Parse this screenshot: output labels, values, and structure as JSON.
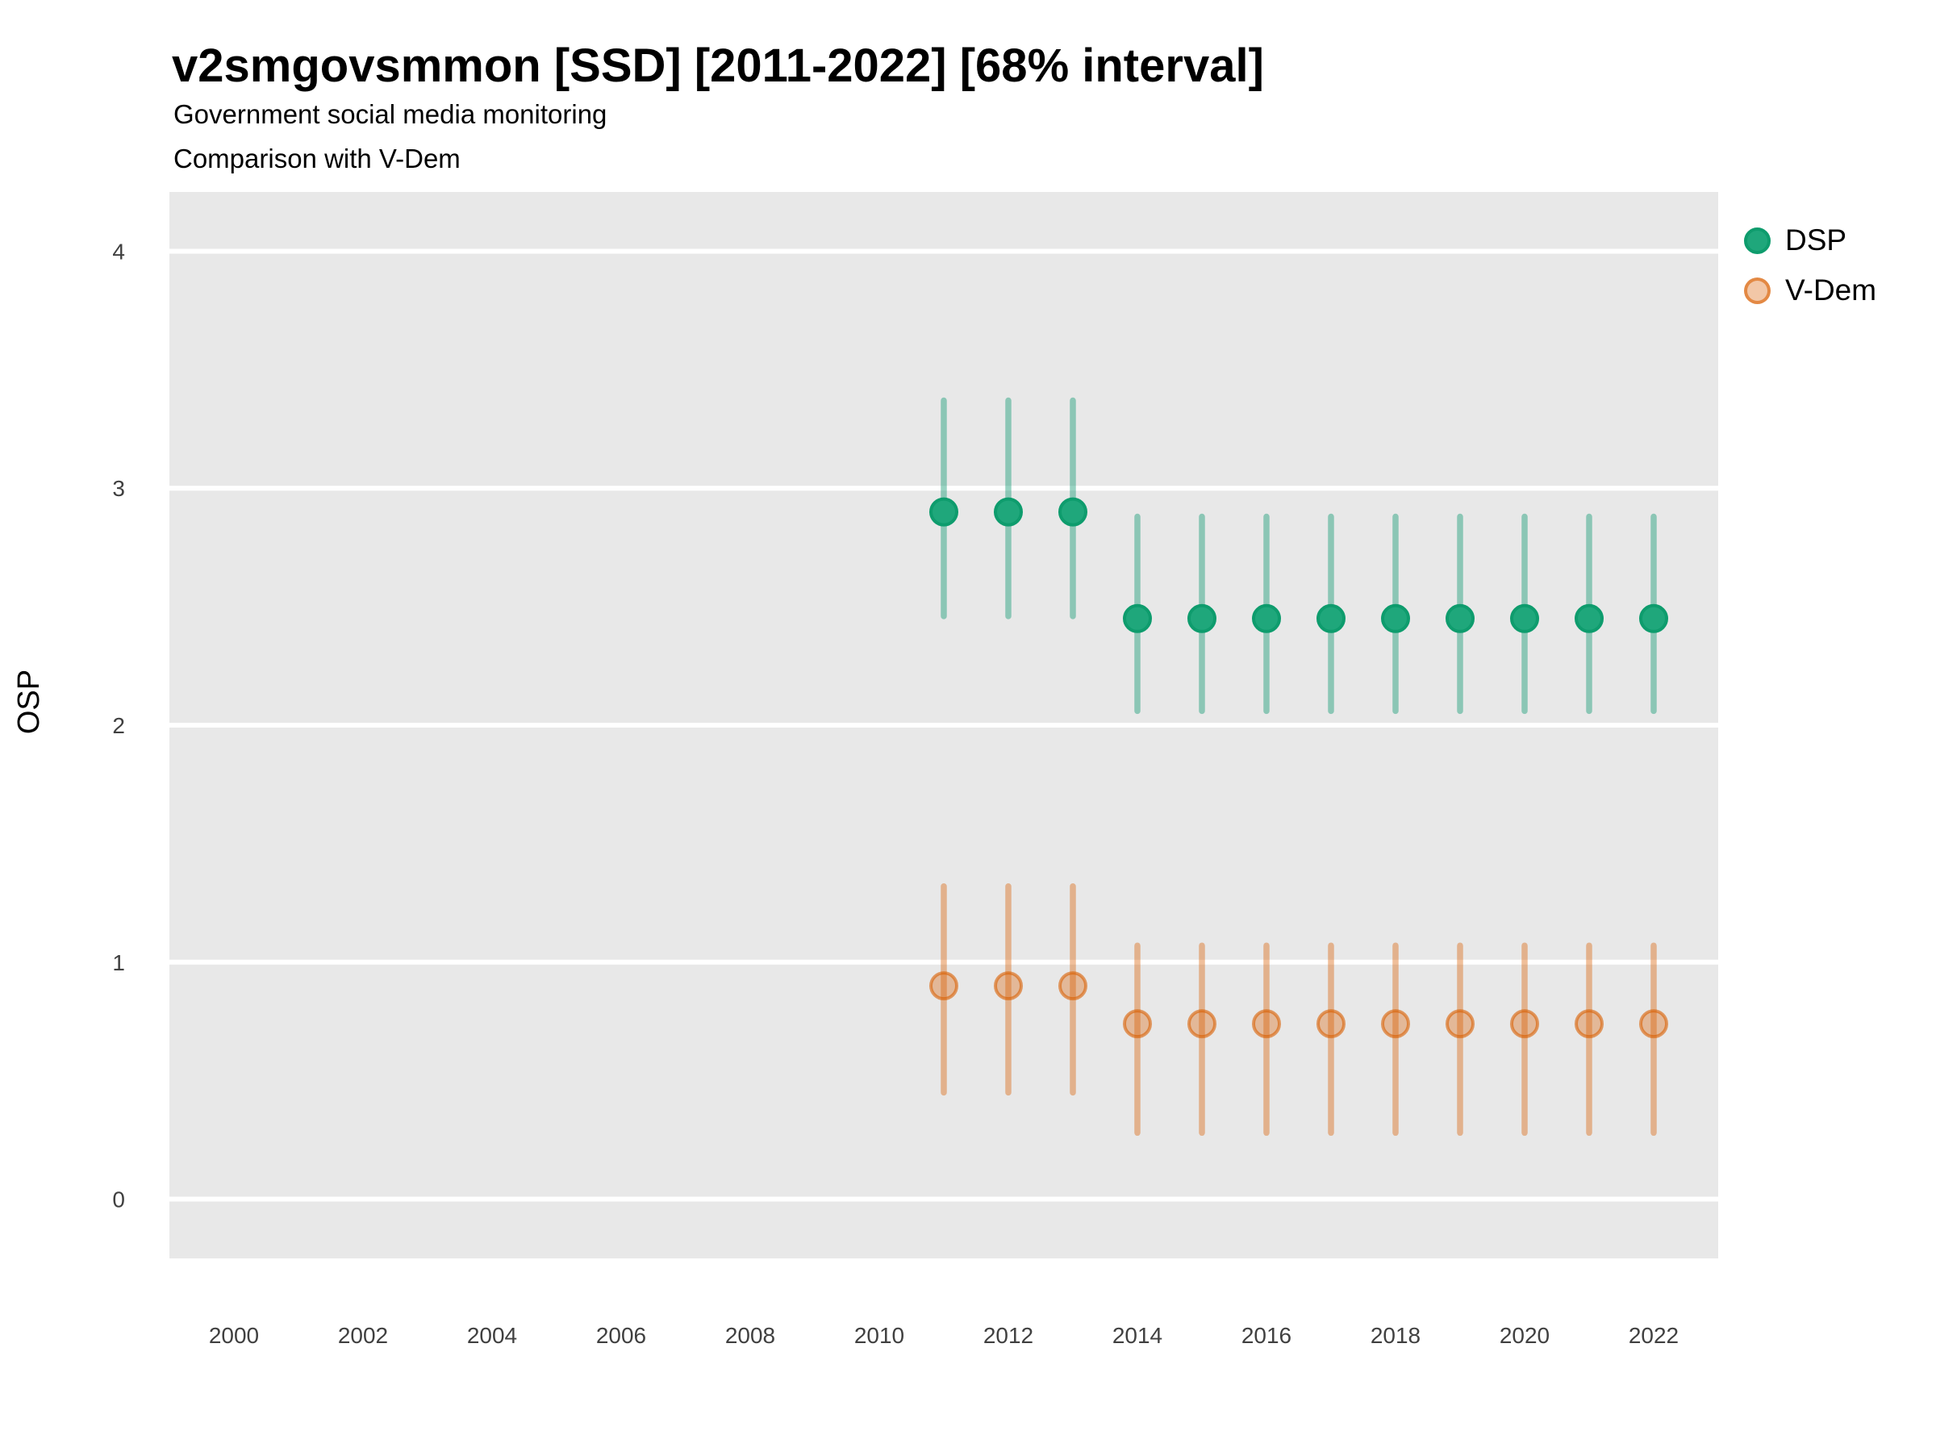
{
  "page": {
    "title": "v2smgovsmmon [SSD] [2011-2022] [68% interval]",
    "subtitle_line1": "Government social media monitoring",
    "subtitle_line2": "Comparison with V-Dem"
  },
  "chart_data": {
    "type": "scatter",
    "mark": "pointrange",
    "title": "v2smgovsmmon [SSD] [2011-2022] [68% interval]",
    "subtitle": [
      "Government social media monitoring",
      "Comparison with V-Dem"
    ],
    "xlabel": "",
    "ylabel": "OSP",
    "xlim": [
      1999,
      2023
    ],
    "ylim": [
      -0.25,
      4.25
    ],
    "x_ticks": [
      2000,
      2002,
      2004,
      2006,
      2008,
      2010,
      2012,
      2014,
      2016,
      2018,
      2020,
      2022
    ],
    "y_ticks": [
      0,
      1,
      2,
      3,
      4
    ],
    "grid": "horizontal white major gridlines on grey panel, no vertical gridlines",
    "legend_position": "right",
    "interval": "68%",
    "panel_background": "#E8E8E8",
    "gridline_color": "#FFFFFF",
    "tick_label_color": "#404040",
    "series": [
      {
        "name": "DSP",
        "color": "#1B9E77",
        "point_fill": "#1FA77B",
        "point_stroke": "#0E9C6D",
        "bar_color": "rgba(27,158,119,0.45)",
        "x": [
          2011,
          2012,
          2013,
          2014,
          2015,
          2016,
          2017,
          2018,
          2019,
          2020,
          2021,
          2022
        ],
        "est": [
          2.9,
          2.9,
          2.9,
          2.45,
          2.45,
          2.45,
          2.45,
          2.45,
          2.45,
          2.45,
          2.45,
          2.45
        ],
        "lo": [
          2.46,
          2.46,
          2.46,
          2.06,
          2.06,
          2.06,
          2.06,
          2.06,
          2.06,
          2.06,
          2.06,
          2.06
        ],
        "hi": [
          3.37,
          3.37,
          3.37,
          2.88,
          2.88,
          2.88,
          2.88,
          2.88,
          2.88,
          2.88,
          2.88,
          2.88
        ]
      },
      {
        "name": "V-Dem",
        "color": "#D95F02",
        "point_fill": "rgba(217,95,2,0.35)",
        "point_stroke": "rgba(217,95,2,0.60)",
        "bar_color": "rgba(217,95,2,0.40)",
        "x": [
          2011,
          2012,
          2013,
          2014,
          2015,
          2016,
          2017,
          2018,
          2019,
          2020,
          2021,
          2022
        ],
        "est": [
          0.9,
          0.9,
          0.9,
          0.74,
          0.74,
          0.74,
          0.74,
          0.74,
          0.74,
          0.74,
          0.74,
          0.74
        ],
        "lo": [
          0.45,
          0.45,
          0.45,
          0.28,
          0.28,
          0.28,
          0.28,
          0.28,
          0.28,
          0.28,
          0.28,
          0.28
        ],
        "hi": [
          1.32,
          1.32,
          1.32,
          1.07,
          1.07,
          1.07,
          1.07,
          1.07,
          1.07,
          1.07,
          1.07,
          1.07
        ]
      }
    ]
  }
}
